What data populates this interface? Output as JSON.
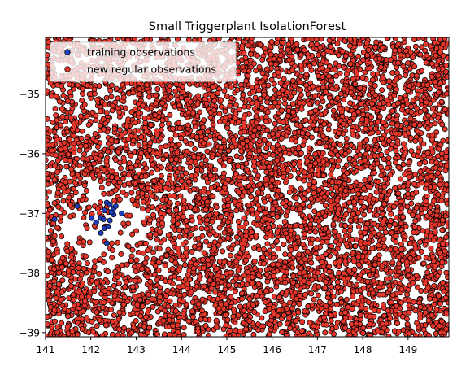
{
  "chart_data": {
    "type": "scatter",
    "title": "Small Triggerplant IsolationForest",
    "xlabel": "",
    "ylabel": "",
    "xlim": [
      141.0,
      149.9
    ],
    "ylim": [
      -39.07,
      -34.05
    ],
    "x_ticks": [
      "141",
      "142",
      "143",
      "144",
      "145",
      "146",
      "147",
      "148",
      "149"
    ],
    "y_ticks": [
      "−35",
      "−36",
      "−37",
      "−38",
      "−39"
    ],
    "grid": false,
    "legend_position": "top-left",
    "series": [
      {
        "name": "training observations",
        "color": "#1f3fbf",
        "edgecolor": "#000000",
        "points": [
          [
            141.2,
            -37.1
          ],
          [
            141.7,
            -36.88
          ],
          [
            142.02,
            -37.08
          ],
          [
            142.12,
            -37.15
          ],
          [
            142.22,
            -37.08
          ],
          [
            142.3,
            -36.95
          ],
          [
            142.35,
            -36.82
          ],
          [
            142.42,
            -36.85
          ],
          [
            142.5,
            -36.92
          ],
          [
            142.5,
            -37.02
          ],
          [
            142.42,
            -37.12
          ],
          [
            142.3,
            -37.25
          ],
          [
            142.22,
            -37.33
          ],
          [
            142.35,
            -37.5
          ],
          [
            142.55,
            -36.88
          ],
          [
            142.68,
            -37.0
          ],
          [
            142.45,
            -36.98
          ],
          [
            142.28,
            -37.1
          ],
          [
            142.38,
            -37.22
          ]
        ]
      },
      {
        "name": "new regular observations",
        "color": "#e8362b",
        "edgecolor": "#000000",
        "distribution": "dense uniform random cover of the full plotted range with sparse gaps near (142.3, -37.2)",
        "count": 6500
      }
    ]
  }
}
